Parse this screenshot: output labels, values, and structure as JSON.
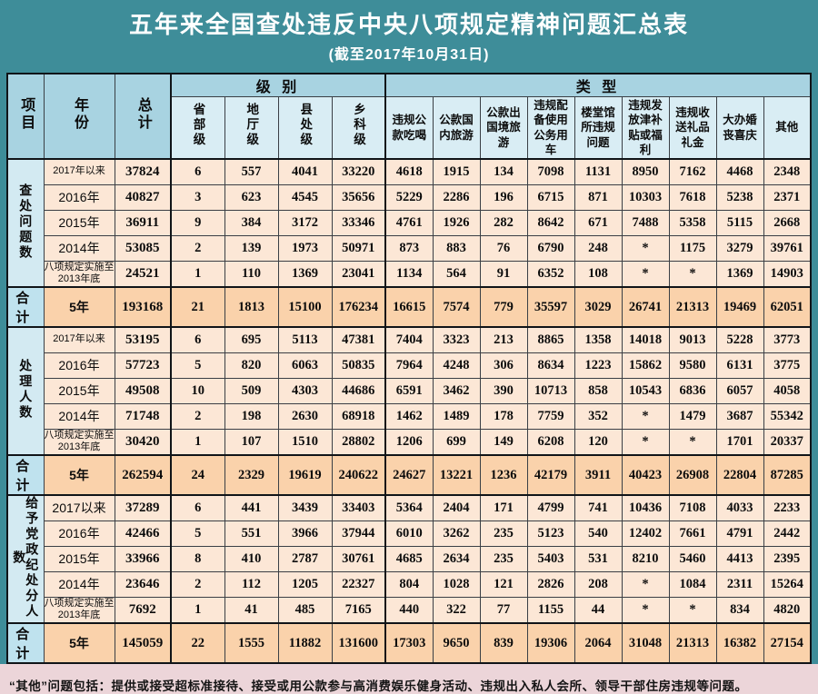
{
  "page_title": "五年来全国查处违反中央八项规定精神问题汇总表",
  "page_subtitle": "(截至2017年10月31日)",
  "footnote": "“其他”问题包括：提供或接受超标准接待、接受或用公款参与高消费娱乐健身活动、违规出入私人会所、领导干部住房违规等问题。",
  "colors": {
    "page_background": "#3e8d99",
    "title_text": "#ffffff",
    "header_blue": "#a8d3e1",
    "subheader_blue": "#d9edf4",
    "group_label_blue": "#d3eaf2",
    "summary_label_blue": "#bfe2ee",
    "data_row_peach": "#fce7d6",
    "summary_row_orange": "#fad2ab",
    "footer_pink": "#ecd5d9",
    "border_dark": "#101418"
  },
  "chart_data": {
    "type": "table",
    "title": "五年来全国查处违反中央八项规定精神问题汇总表",
    "subtitle": "(截至2017年10月31日)",
    "corner_headers": {
      "item": "项目",
      "year": "年份",
      "total": "总计"
    },
    "column_groups": {
      "level": "级 别",
      "type": "类 型"
    },
    "level_columns": [
      "省部级",
      "地厅级",
      "县处级",
      "乡科级"
    ],
    "type_columns": [
      "违规公款吃喝",
      "公款国内旅游",
      "公款出国境旅游",
      "违规配备使用公务用车",
      "楼堂馆所违规问题",
      "违规发放津补贴或福利",
      "违规收送礼品礼金",
      "大办婚丧喜庆",
      "其他"
    ],
    "groups": [
      {
        "label": "查处问题数",
        "rows": [
          {
            "year": "2017年以来",
            "total": "37824",
            "values": [
              "6",
              "557",
              "4041",
              "33220",
              "4618",
              "1915",
              "134",
              "7098",
              "1131",
              "8950",
              "7162",
              "4468",
              "2348"
            ]
          },
          {
            "year": "2016年",
            "total": "40827",
            "values": [
              "3",
              "623",
              "4545",
              "35656",
              "5229",
              "2286",
              "196",
              "6715",
              "871",
              "10303",
              "7618",
              "5238",
              "2371"
            ]
          },
          {
            "year": "2015年",
            "total": "36911",
            "values": [
              "9",
              "384",
              "3172",
              "33346",
              "4761",
              "1926",
              "282",
              "8642",
              "671",
              "7488",
              "5358",
              "5115",
              "2668"
            ]
          },
          {
            "year": "2014年",
            "total": "53085",
            "values": [
              "2",
              "139",
              "1973",
              "50971",
              "873",
              "883",
              "76",
              "6790",
              "248",
              "*",
              "1175",
              "3279",
              "39761"
            ]
          },
          {
            "year": "八项规定实施至2013年底",
            "total": "24521",
            "values": [
              "1",
              "110",
              "1369",
              "23041",
              "1134",
              "564",
              "91",
              "6352",
              "108",
              "*",
              "*",
              "1369",
              "14903"
            ]
          }
        ],
        "summary": {
          "label": "合计",
          "year": "5年",
          "total": "193168",
          "values": [
            "21",
            "1813",
            "15100",
            "176234",
            "16615",
            "7574",
            "779",
            "35597",
            "3029",
            "26741",
            "21313",
            "19469",
            "62051"
          ]
        }
      },
      {
        "label": "处理人数",
        "rows": [
          {
            "year": "2017年以来",
            "total": "53195",
            "values": [
              "6",
              "695",
              "5113",
              "47381",
              "7404",
              "3323",
              "213",
              "8865",
              "1358",
              "14018",
              "9013",
              "5228",
              "3773"
            ]
          },
          {
            "year": "2016年",
            "total": "57723",
            "values": [
              "5",
              "820",
              "6063",
              "50835",
              "7964",
              "4248",
              "306",
              "8634",
              "1223",
              "15862",
              "9580",
              "6131",
              "3775"
            ]
          },
          {
            "year": "2015年",
            "total": "49508",
            "values": [
              "10",
              "509",
              "4303",
              "44686",
              "6591",
              "3462",
              "390",
              "10713",
              "858",
              "10543",
              "6836",
              "6057",
              "4058"
            ]
          },
          {
            "year": "2014年",
            "total": "71748",
            "values": [
              "2",
              "198",
              "2630",
              "68918",
              "1462",
              "1489",
              "178",
              "7759",
              "352",
              "*",
              "1479",
              "3687",
              "55342"
            ]
          },
          {
            "year": "八项规定实施至2013年底",
            "total": "30420",
            "values": [
              "1",
              "107",
              "1510",
              "28802",
              "1206",
              "699",
              "149",
              "6208",
              "120",
              "*",
              "*",
              "1701",
              "20337"
            ]
          }
        ],
        "summary": {
          "label": "合计",
          "year": "5年",
          "total": "262594",
          "values": [
            "24",
            "2329",
            "19619",
            "240622",
            "24627",
            "13221",
            "1236",
            "42179",
            "3911",
            "40423",
            "26908",
            "22804",
            "87285"
          ]
        }
      },
      {
        "label": "给予党政纪处分人数",
        "rows": [
          {
            "year": "2017以来",
            "total": "37289",
            "values": [
              "6",
              "441",
              "3439",
              "33403",
              "5364",
              "2404",
              "171",
              "4799",
              "741",
              "10436",
              "7108",
              "4033",
              "2233"
            ]
          },
          {
            "year": "2016年",
            "total": "42466",
            "values": [
              "5",
              "551",
              "3966",
              "37944",
              "6010",
              "3262",
              "235",
              "5123",
              "540",
              "12402",
              "7661",
              "4791",
              "2442"
            ]
          },
          {
            "year": "2015年",
            "total": "33966",
            "values": [
              "8",
              "410",
              "2787",
              "30761",
              "4685",
              "2634",
              "235",
              "5403",
              "531",
              "8210",
              "5460",
              "4413",
              "2395"
            ]
          },
          {
            "year": "2014年",
            "total": "23646",
            "values": [
              "2",
              "112",
              "1205",
              "22327",
              "804",
              "1028",
              "121",
              "2826",
              "208",
              "*",
              "1084",
              "2311",
              "15264"
            ]
          },
          {
            "year": "八项规定实施至2013年底",
            "total": "7692",
            "values": [
              "1",
              "41",
              "485",
              "7165",
              "440",
              "322",
              "77",
              "1155",
              "44",
              "*",
              "*",
              "834",
              "4820"
            ]
          }
        ],
        "summary": {
          "label": "合计",
          "year": "5年",
          "total": "145059",
          "values": [
            "22",
            "1555",
            "11882",
            "131600",
            "17303",
            "9650",
            "839",
            "19306",
            "2064",
            "31048",
            "21313",
            "16382",
            "27154"
          ]
        }
      }
    ]
  }
}
